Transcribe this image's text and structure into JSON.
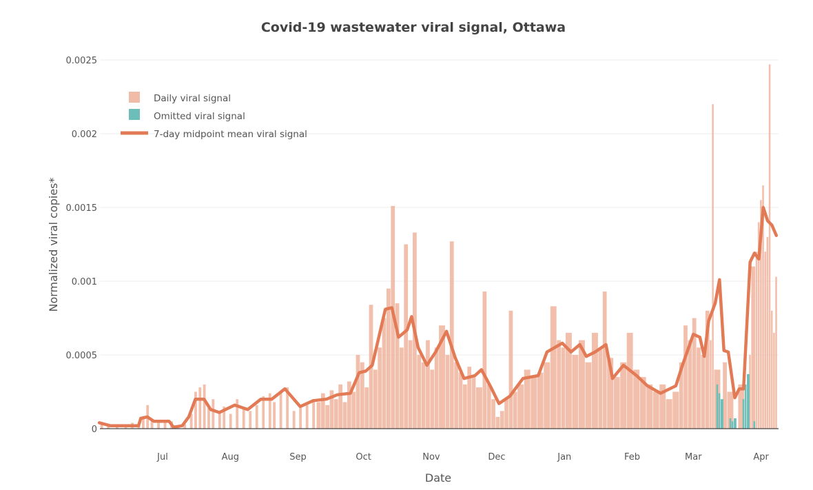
{
  "chart_data": {
    "type": "bar+line",
    "title": "Covid-19 wastewater viral signal, Ottawa",
    "xlabel": "Date",
    "ylabel": "Normalized viral copies*",
    "ylim": [
      0,
      0.0025
    ],
    "yticks": [
      0,
      0.0005,
      0.001,
      0.0015,
      0.002,
      0.0025
    ],
    "ytick_labels": [
      "0",
      "0.0005",
      "0.001",
      "0.0015",
      "0.002",
      "0.0025"
    ],
    "xticks": [
      "2020-07-01",
      "2020-08-01",
      "2020-09-01",
      "2020-10-01",
      "2020-11-01",
      "2020-12-01",
      "2021-01-01",
      "2021-02-01",
      "2021-03-01",
      "2021-04-01"
    ],
    "xtick_labels": [
      "Jul",
      "Aug",
      "Sep",
      "Oct",
      "Nov",
      "Dec",
      "Jan",
      "Feb",
      "Mar",
      "Apr"
    ],
    "grid": true,
    "legend_position": "top-left",
    "colors": {
      "daily": "#f0bca8",
      "omitted": "#6dbdb9",
      "mean": "#e27a55"
    },
    "series": [
      {
        "name": "Daily viral signal",
        "type": "bar",
        "points": [
          [
            "2020-06-03",
            4e-05
          ],
          [
            "2020-06-06",
            2e-05
          ],
          [
            "2020-06-10",
            2e-05
          ],
          [
            "2020-06-14",
            3e-05
          ],
          [
            "2020-06-17",
            4e-05
          ],
          [
            "2020-06-20",
            3e-05
          ],
          [
            "2020-06-22",
            8e-05
          ],
          [
            "2020-06-24",
            0.00016
          ],
          [
            "2020-06-26",
            6e-05
          ],
          [
            "2020-06-29",
            5e-05
          ],
          [
            "2020-07-02",
            4e-05
          ],
          [
            "2020-07-05",
            5e-05
          ],
          [
            "2020-07-08",
            1e-05
          ],
          [
            "2020-07-11",
            3e-05
          ],
          [
            "2020-07-14",
            0.0001
          ],
          [
            "2020-07-16",
            0.00025
          ],
          [
            "2020-07-18",
            0.00028
          ],
          [
            "2020-07-20",
            0.0003
          ],
          [
            "2020-07-22",
            0.00014
          ],
          [
            "2020-07-24",
            0.0002
          ],
          [
            "2020-07-27",
            0.00012
          ],
          [
            "2020-07-29",
            0.00015
          ],
          [
            "2020-08-01",
            0.0001
          ],
          [
            "2020-08-04",
            0.0002
          ],
          [
            "2020-08-07",
            0.00014
          ],
          [
            "2020-08-10",
            0.00012
          ],
          [
            "2020-08-13",
            0.00016
          ],
          [
            "2020-08-16",
            0.00022
          ],
          [
            "2020-08-19",
            0.00024
          ],
          [
            "2020-08-21",
            0.00018
          ],
          [
            "2020-08-24",
            0.00025
          ],
          [
            "2020-08-27",
            0.00028
          ],
          [
            "2020-08-30",
            0.00012
          ],
          [
            "2020-09-02",
            0.00014
          ],
          [
            "2020-09-05",
            0.00016
          ],
          [
            "2020-09-08",
            0.0002
          ],
          [
            "2020-09-10",
            0.00018
          ],
          [
            "2020-09-12",
            0.00024
          ],
          [
            "2020-09-14",
            0.00016
          ],
          [
            "2020-09-16",
            0.00026
          ],
          [
            "2020-09-18",
            0.0002
          ],
          [
            "2020-09-20",
            0.0003
          ],
          [
            "2020-09-22",
            0.00018
          ],
          [
            "2020-09-24",
            0.00032
          ],
          [
            "2020-09-26",
            0.00025
          ],
          [
            "2020-09-28",
            0.0005
          ],
          [
            "2020-09-30",
            0.00045
          ],
          [
            "2020-10-02",
            0.00028
          ],
          [
            "2020-10-04",
            0.00084
          ],
          [
            "2020-10-06",
            0.0004
          ],
          [
            "2020-10-08",
            0.00055
          ],
          [
            "2020-10-10",
            0.00075
          ],
          [
            "2020-10-12",
            0.00095
          ],
          [
            "2020-10-14",
            0.00151
          ],
          [
            "2020-10-16",
            0.00085
          ],
          [
            "2020-10-18",
            0.00055
          ],
          [
            "2020-10-20",
            0.00125
          ],
          [
            "2020-10-22",
            0.0006
          ],
          [
            "2020-10-24",
            0.00133
          ],
          [
            "2020-10-26",
            0.0005
          ],
          [
            "2020-10-28",
            0.00045
          ],
          [
            "2020-10-30",
            0.0006
          ],
          [
            "2020-11-01",
            0.0004
          ],
          [
            "2020-11-03",
            0.00055
          ],
          [
            "2020-11-05",
            0.0007
          ],
          [
            "2020-11-08",
            0.0005
          ],
          [
            "2020-11-10",
            0.00127
          ],
          [
            "2020-11-12",
            0.00045
          ],
          [
            "2020-11-14",
            0.00038
          ],
          [
            "2020-11-16",
            0.0003
          ],
          [
            "2020-11-18",
            0.00042
          ],
          [
            "2020-11-20",
            0.00035
          ],
          [
            "2020-11-22",
            0.00028
          ],
          [
            "2020-11-25",
            0.00093
          ],
          [
            "2020-11-27",
            0.0003
          ],
          [
            "2020-11-29",
            0.0002
          ],
          [
            "2020-12-01",
            8e-05
          ],
          [
            "2020-12-03",
            0.00012
          ],
          [
            "2020-12-05",
            0.0002
          ],
          [
            "2020-12-07",
            0.0008
          ],
          [
            "2020-12-09",
            0.00025
          ],
          [
            "2020-12-11",
            0.0003
          ],
          [
            "2020-12-14",
            0.0004
          ],
          [
            "2020-12-17",
            0.00035
          ],
          [
            "2020-12-20",
            0.00038
          ],
          [
            "2020-12-23",
            0.00045
          ],
          [
            "2020-12-26",
            0.00083
          ],
          [
            "2020-12-29",
            0.0006
          ],
          [
            "2020-12-31",
            0.00055
          ],
          [
            "2021-01-02",
            0.00065
          ],
          [
            "2021-01-05",
            0.0005
          ],
          [
            "2021-01-08",
            0.0006
          ],
          [
            "2021-01-11",
            0.00045
          ],
          [
            "2021-01-14",
            0.00065
          ],
          [
            "2021-01-17",
            0.00055
          ],
          [
            "2021-01-19",
            0.00093
          ],
          [
            "2021-01-21",
            0.00048
          ],
          [
            "2021-01-24",
            0.00035
          ],
          [
            "2021-01-27",
            0.00045
          ],
          [
            "2021-01-30",
            0.00065
          ],
          [
            "2021-02-02",
            0.0004
          ],
          [
            "2021-02-05",
            0.00035
          ],
          [
            "2021-02-08",
            0.0003
          ],
          [
            "2021-02-11",
            0.00025
          ],
          [
            "2021-02-14",
            0.0003
          ],
          [
            "2021-02-17",
            0.0002
          ],
          [
            "2021-02-20",
            0.00025
          ],
          [
            "2021-02-23",
            0.00045
          ],
          [
            "2021-02-25",
            0.0007
          ],
          [
            "2021-02-27",
            0.0006
          ],
          [
            "2021-03-01",
            0.00075
          ],
          [
            "2021-03-03",
            0.00055
          ],
          [
            "2021-03-05",
            0.0005
          ],
          [
            "2021-03-07",
            0.0008
          ],
          [
            "2021-03-09",
            0.0006
          ],
          [
            "2021-03-10",
            0.0022
          ],
          [
            "2021-03-11",
            0.0004
          ],
          [
            "2021-03-15",
            0.00045
          ],
          [
            "2021-03-17",
            0.00025
          ],
          [
            "2021-03-22",
            0.0003
          ],
          [
            "2021-03-27",
            0.0005
          ],
          [
            "2021-03-28",
            0.0011
          ],
          [
            "2021-03-30",
            0.0012
          ],
          [
            "2021-03-31",
            0.0014
          ],
          [
            "2021-04-01",
            0.00155
          ],
          [
            "2021-04-02",
            0.00165
          ],
          [
            "2021-04-03",
            0.0012
          ],
          [
            "2021-04-04",
            0.0013
          ],
          [
            "2021-04-05",
            0.00247
          ],
          [
            "2021-04-06",
            0.0008
          ],
          [
            "2021-04-07",
            0.00065
          ],
          [
            "2021-04-08",
            0.00103
          ]
        ]
      },
      {
        "name": "Omitted viral signal",
        "type": "bar",
        "points": [
          [
            "2021-03-12",
            0.0003
          ],
          [
            "2021-03-13",
            0.00024
          ],
          [
            "2021-03-14",
            0.0002
          ],
          [
            "2021-03-18",
            7e-05
          ],
          [
            "2021-03-19",
            5e-05
          ],
          [
            "2021-03-20",
            7e-05
          ],
          [
            "2021-03-24",
            0.0002
          ],
          [
            "2021-03-25",
            0.0003
          ],
          [
            "2021-03-26",
            0.00037
          ],
          [
            "2021-03-29",
            5e-05
          ]
        ]
      },
      {
        "name": "7-day midpoint mean viral signal",
        "type": "line",
        "points": [
          [
            "2020-06-02",
            4e-05
          ],
          [
            "2020-06-07",
            2e-05
          ],
          [
            "2020-06-20",
            2e-05
          ],
          [
            "2020-06-21",
            7e-05
          ],
          [
            "2020-06-24",
            8e-05
          ],
          [
            "2020-06-27",
            5e-05
          ],
          [
            "2020-07-04",
            5e-05
          ],
          [
            "2020-07-06",
            1e-05
          ],
          [
            "2020-07-10",
            2e-05
          ],
          [
            "2020-07-13",
            8e-05
          ],
          [
            "2020-07-16",
            0.0002
          ],
          [
            "2020-07-20",
            0.0002
          ],
          [
            "2020-07-23",
            0.00013
          ],
          [
            "2020-07-27",
            0.00011
          ],
          [
            "2020-08-03",
            0.00016
          ],
          [
            "2020-08-09",
            0.00013
          ],
          [
            "2020-08-15",
            0.0002
          ],
          [
            "2020-08-20",
            0.0002
          ],
          [
            "2020-08-26",
            0.00027
          ],
          [
            "2020-09-02",
            0.00015
          ],
          [
            "2020-09-08",
            0.00019
          ],
          [
            "2020-09-14",
            0.0002
          ],
          [
            "2020-09-19",
            0.00023
          ],
          [
            "2020-09-25",
            0.00024
          ],
          [
            "2020-09-29",
            0.00038
          ],
          [
            "2020-10-02",
            0.00039
          ],
          [
            "2020-10-05",
            0.00043
          ],
          [
            "2020-10-08",
            0.00062
          ],
          [
            "2020-10-11",
            0.00081
          ],
          [
            "2020-10-14",
            0.00082
          ],
          [
            "2020-10-17",
            0.00062
          ],
          [
            "2020-10-21",
            0.00067
          ],
          [
            "2020-10-23",
            0.00076
          ],
          [
            "2020-10-26",
            0.00055
          ],
          [
            "2020-10-30",
            0.00043
          ],
          [
            "2020-11-03",
            0.00052
          ],
          [
            "2020-11-08",
            0.00066
          ],
          [
            "2020-11-12",
            0.00048
          ],
          [
            "2020-11-16",
            0.00034
          ],
          [
            "2020-11-21",
            0.00036
          ],
          [
            "2020-11-24",
            0.0004
          ],
          [
            "2020-11-28",
            0.00029
          ],
          [
            "2020-12-02",
            0.00017
          ],
          [
            "2020-12-07",
            0.00022
          ],
          [
            "2020-12-13",
            0.00034
          ],
          [
            "2020-12-20",
            0.00036
          ],
          [
            "2020-12-24",
            0.00052
          ],
          [
            "2020-12-31",
            0.00058
          ],
          [
            "2021-01-04",
            0.00052
          ],
          [
            "2021-01-08",
            0.00057
          ],
          [
            "2021-01-11",
            0.00049
          ],
          [
            "2021-01-15",
            0.00052
          ],
          [
            "2021-01-20",
            0.00057
          ],
          [
            "2021-01-23",
            0.00034
          ],
          [
            "2021-01-28",
            0.00043
          ],
          [
            "2021-02-03",
            0.00036
          ],
          [
            "2021-02-08",
            0.00029
          ],
          [
            "2021-02-14",
            0.00024
          ],
          [
            "2021-02-21",
            0.00029
          ],
          [
            "2021-02-24",
            0.00043
          ],
          [
            "2021-03-01",
            0.00064
          ],
          [
            "2021-03-04",
            0.00062
          ],
          [
            "2021-03-06",
            0.00049
          ],
          [
            "2021-03-08",
            0.00073
          ],
          [
            "2021-03-11",
            0.00085
          ],
          [
            "2021-03-13",
            0.00101
          ],
          [
            "2021-03-15",
            0.00053
          ],
          [
            "2021-03-17",
            0.00052
          ],
          [
            "2021-03-20",
            0.00021
          ],
          [
            "2021-03-22",
            0.00027
          ],
          [
            "2021-03-24",
            0.00027
          ],
          [
            "2021-03-27",
            0.00113
          ],
          [
            "2021-03-29",
            0.00119
          ],
          [
            "2021-03-31",
            0.00115
          ],
          [
            "2021-04-02",
            0.0015
          ],
          [
            "2021-04-04",
            0.00141
          ],
          [
            "2021-04-06",
            0.00138
          ],
          [
            "2021-04-08",
            0.00131
          ]
        ]
      }
    ]
  }
}
